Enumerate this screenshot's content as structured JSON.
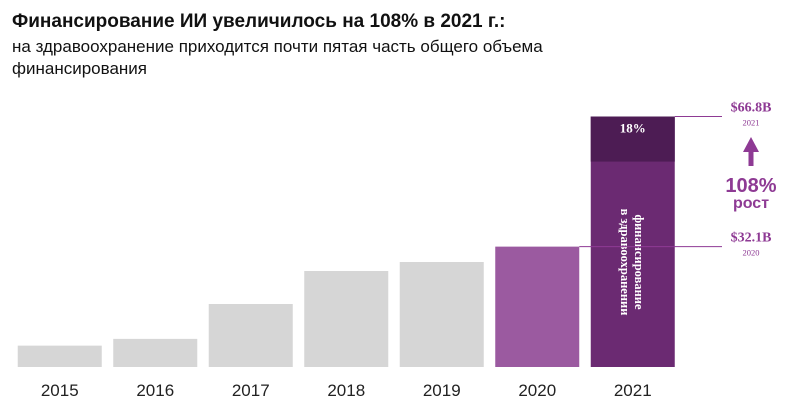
{
  "title": "Финансирование ИИ увеличилось на 108% в 2021 г.:",
  "subtitle": "на здравоохранение приходится почти пятая часть общего объема финансирования",
  "colors": {
    "past": "#d6d6d6",
    "year2020": "#9b5aa0",
    "year2021": "#6b2a72",
    "healthcare": "#4d1c54",
    "accent": "#8e3a94"
  },
  "chart_data": {
    "type": "bar",
    "categories": [
      "2015",
      "2016",
      "2017",
      "2018",
      "2019",
      "2020",
      "2021"
    ],
    "values": [
      5.7,
      7.5,
      16.8,
      25.6,
      28.0,
      32.1,
      66.8
    ],
    "ylim": [
      0,
      70
    ],
    "grid": false,
    "healthcare_share": {
      "category": "2021",
      "label": "18%",
      "segment_label": "финансирование в здравоохранении"
    },
    "annotations": [
      {
        "label": "$66.8B",
        "year": "2021",
        "value": 66.8
      },
      {
        "label": "$32.1B",
        "year": "2020",
        "value": 32.1
      }
    ],
    "growth": {
      "value": "108%",
      "label": "рост"
    }
  }
}
